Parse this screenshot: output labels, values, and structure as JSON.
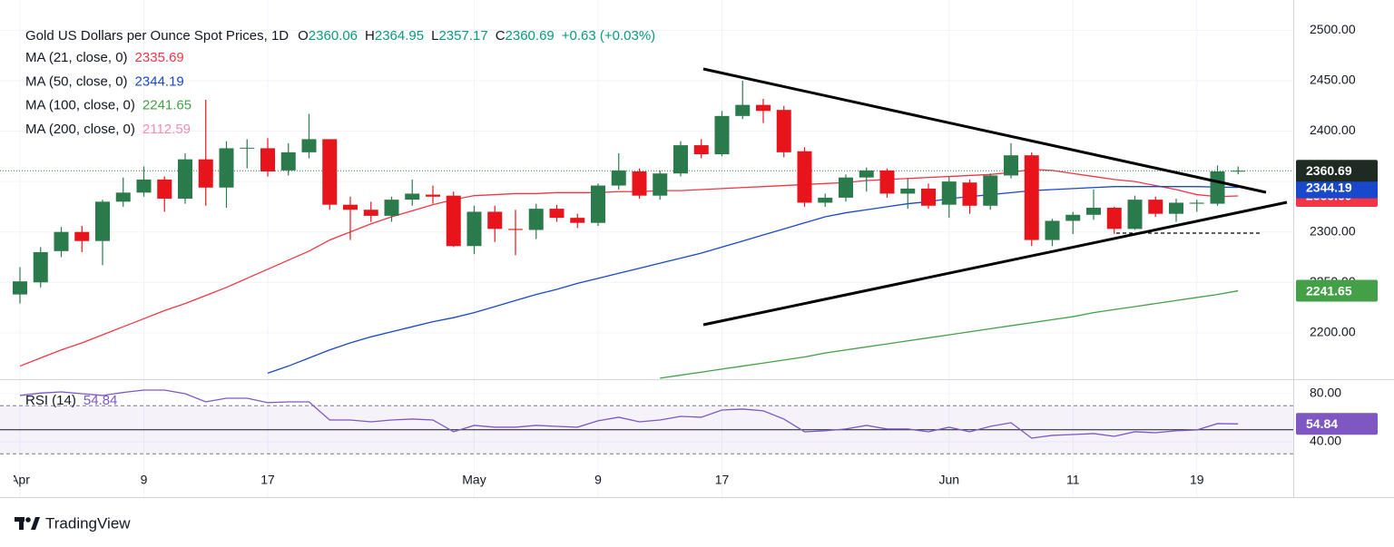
{
  "chart_data": {
    "type": "candlestick",
    "title": "Gold US Dollars per Ounce Spot Prices, 1D",
    "header": {
      "fields": [
        {
          "key": "O",
          "value": "2360.06"
        },
        {
          "key": "H",
          "value": "2364.95"
        },
        {
          "key": "L",
          "value": "2357.17"
        },
        {
          "key": "C",
          "value": "2360.69"
        }
      ],
      "change": "+0.63 (+0.03%)"
    },
    "categories": [
      "Apr",
      null,
      null,
      null,
      null,
      null,
      "9",
      null,
      null,
      null,
      null,
      null,
      "17",
      null,
      null,
      null,
      null,
      null,
      null,
      null,
      null,
      null,
      "May",
      null,
      null,
      null,
      null,
      null,
      "9",
      null,
      null,
      null,
      null,
      null,
      "17",
      null,
      null,
      null,
      null,
      null,
      null,
      null,
      null,
      null,
      null,
      "Jun",
      null,
      null,
      null,
      null,
      null,
      "11",
      null,
      null,
      null,
      null,
      null,
      "19",
      null,
      null
    ],
    "open": [
      2238,
      2250,
      2281,
      2300,
      2291,
      2330,
      2339,
      2352,
      2333,
      2372,
      2344,
      2383,
      2383,
      2361,
      2379,
      2392,
      2327,
      2322,
      2316,
      2332,
      2337,
      2336,
      2286,
      2320,
      2303,
      2302,
      2323,
      2314,
      2309,
      2346,
      2360,
      2336,
      2358,
      2386,
      2377,
      2415,
      2426,
      2421,
      2380,
      2329,
      2334,
      2354,
      2361,
      2338,
      2343,
      2327,
      2349,
      2326,
      2356,
      2376,
      2292,
      2311,
      2317,
      2324,
      2303,
      2332,
      2318,
      2328,
      2328,
      2360.06
    ],
    "high": [
      2265,
      2285,
      2305,
      2306,
      2332,
      2354,
      2365,
      2355,
      2378,
      2431,
      2390,
      2392,
      2393,
      2388,
      2417,
      2392,
      2335,
      2330,
      2335,
      2352,
      2346,
      2340,
      2326,
      2326,
      2322,
      2328,
      2327,
      2318,
      2348,
      2378,
      2363,
      2361,
      2390,
      2392,
      2420,
      2450,
      2432,
      2425,
      2384,
      2338,
      2357,
      2364,
      2363,
      2353,
      2348,
      2355,
      2352,
      2358,
      2388,
      2379,
      2313,
      2320,
      2342,
      2325,
      2336,
      2335,
      2333,
      2332,
      2366,
      2364.95
    ],
    "low": [
      2229,
      2245,
      2275,
      2280,
      2267,
      2325,
      2335,
      2320,
      2328,
      2326,
      2324,
      2363,
      2355,
      2356,
      2373,
      2322,
      2292,
      2310,
      2310,
      2326,
      2328,
      2285,
      2278,
      2290,
      2277,
      2293,
      2310,
      2304,
      2306,
      2342,
      2333,
      2332,
      2355,
      2373,
      2375,
      2412,
      2408,
      2374,
      2325,
      2325,
      2330,
      2340,
      2334,
      2323,
      2323,
      2314,
      2318,
      2322,
      2353,
      2286,
      2286,
      2298,
      2312,
      2298,
      2302,
      2315,
      2310,
      2320,
      2326,
      2357.17
    ],
    "close": [
      2251,
      2280,
      2300,
      2291,
      2330,
      2339,
      2352,
      2333,
      2372,
      2344,
      2383,
      2383.5,
      2360,
      2379,
      2392,
      2327,
      2322,
      2316,
      2332,
      2338,
      2335,
      2286,
      2320,
      2303,
      2302,
      2323,
      2314,
      2309,
      2346,
      2361,
      2336,
      2358,
      2386,
      2377,
      2415,
      2426,
      2420,
      2379,
      2329,
      2334,
      2354,
      2361,
      2338,
      2343,
      2326,
      2350,
      2326,
      2356,
      2376,
      2292,
      2311,
      2317,
      2324,
      2303,
      2332,
      2318,
      2329,
      2329,
      2360,
      2360.69
    ],
    "up_color": "#2b7a4b",
    "down_color": "#e8141c",
    "last_price_color": "#1f2a22",
    "ylim": [
      2154,
      2530
    ],
    "yticks": [
      {
        "value": 2200,
        "label": "2200.00"
      },
      {
        "value": 2250,
        "label": "2250.00"
      },
      {
        "value": 2300,
        "label": "2300.00"
      },
      {
        "value": 2350,
        "label": "2350.00"
      },
      {
        "value": 2400,
        "label": "2400.00"
      },
      {
        "value": 2450,
        "label": "2450.00"
      },
      {
        "value": 2500,
        "label": "2500.00"
      }
    ],
    "series": [
      {
        "name": "MA (21, close, 0)",
        "color": "#f23645",
        "legend_value": 2335.69,
        "price_tag": true,
        "values": [
          2167,
          2175,
          2183,
          2190,
          2198,
          2206,
          2214,
          2222,
          2229,
          2237,
          2245,
          2254,
          2263,
          2272,
          2281,
          2292,
          2300,
          2308,
          2315,
          2321,
          2327,
          2332,
          2336,
          2337,
          2338,
          2338,
          2339,
          2339,
          2339,
          2340,
          2340,
          2341,
          2341,
          2342,
          2343,
          2344,
          2345,
          2346,
          2347,
          2348,
          2349,
          2351,
          2352,
          2353,
          2354,
          2355,
          2356,
          2357,
          2359,
          2362,
          2361,
          2358,
          2355,
          2352,
          2350,
          2346,
          2342,
          2337,
          2335,
          2335.69
        ]
      },
      {
        "name": "MA (50, close, 0)",
        "color": "#1848cc",
        "legend_value": 2344.19,
        "price_tag": true,
        "values": [
          null,
          null,
          null,
          null,
          null,
          null,
          null,
          null,
          null,
          null,
          null,
          null,
          2160,
          2167,
          2175,
          2183,
          2190,
          2196,
          2201,
          2206,
          2211,
          2215,
          2220,
          2226,
          2232,
          2238,
          2243,
          2249,
          2254,
          2259,
          2264,
          2269,
          2274,
          2279,
          2285,
          2291,
          2297,
          2303,
          2309,
          2315,
          2319,
          2322,
          2325,
          2328,
          2330,
          2333,
          2335,
          2337,
          2339,
          2341,
          2342,
          2343,
          2344,
          2345,
          2345,
          2345,
          2345,
          2345,
          2344.5,
          2344.19
        ]
      },
      {
        "name": "MA (100, close, 0)",
        "color": "#43a047",
        "legend_value": 2241.65,
        "price_tag": true,
        "values": [
          null,
          null,
          null,
          null,
          null,
          null,
          null,
          null,
          null,
          null,
          null,
          null,
          null,
          null,
          null,
          null,
          null,
          null,
          null,
          null,
          null,
          null,
          null,
          null,
          null,
          null,
          null,
          null,
          null,
          null,
          null,
          2155,
          2158,
          2161,
          2164,
          2167,
          2170,
          2173,
          2176,
          2180,
          2183,
          2186,
          2189,
          2192,
          2195,
          2198,
          2201,
          2204,
          2207,
          2210,
          2213,
          2216,
          2220,
          2223,
          2226,
          2229,
          2232,
          2235,
          2238,
          2241.65
        ]
      },
      {
        "name": "MA (200, close, 0)",
        "color": "#f48fb1",
        "legend_value": 2112.59,
        "price_tag": false
      }
    ],
    "rsi": {
      "name": "RSI (14)",
      "color": "#7e57c2",
      "values": [
        78.5,
        80.5,
        81.5,
        80,
        78.5,
        81,
        83,
        83,
        80,
        73.2,
        76.2,
        76.2,
        72.5,
        73.2,
        73.2,
        58.1,
        58.1,
        56.6,
        58.1,
        58.9,
        58.1,
        48.3,
        53.6,
        52.1,
        52.1,
        53.6,
        52.8,
        52.1,
        57.4,
        60.4,
        56.6,
        58.1,
        61.1,
        60.4,
        66.4,
        67.2,
        65.7,
        58.9,
        48.3,
        49.1,
        50.6,
        53.6,
        50.6,
        50.6,
        48.3,
        52.1,
        48.3,
        52.8,
        55.8,
        43,
        45.3,
        46,
        46.8,
        44.5,
        48.3,
        47.5,
        49.1,
        49.8,
        55.1,
        54.84
      ],
      "ylim": [
        22,
        91
      ],
      "yticks": [
        {
          "value": 40,
          "label": "40.00"
        },
        {
          "value": 80,
          "label": "80.00"
        }
      ],
      "bands": [
        30,
        70
      ],
      "mid": 50
    }
  },
  "footer": {
    "brand": "TradingView"
  }
}
